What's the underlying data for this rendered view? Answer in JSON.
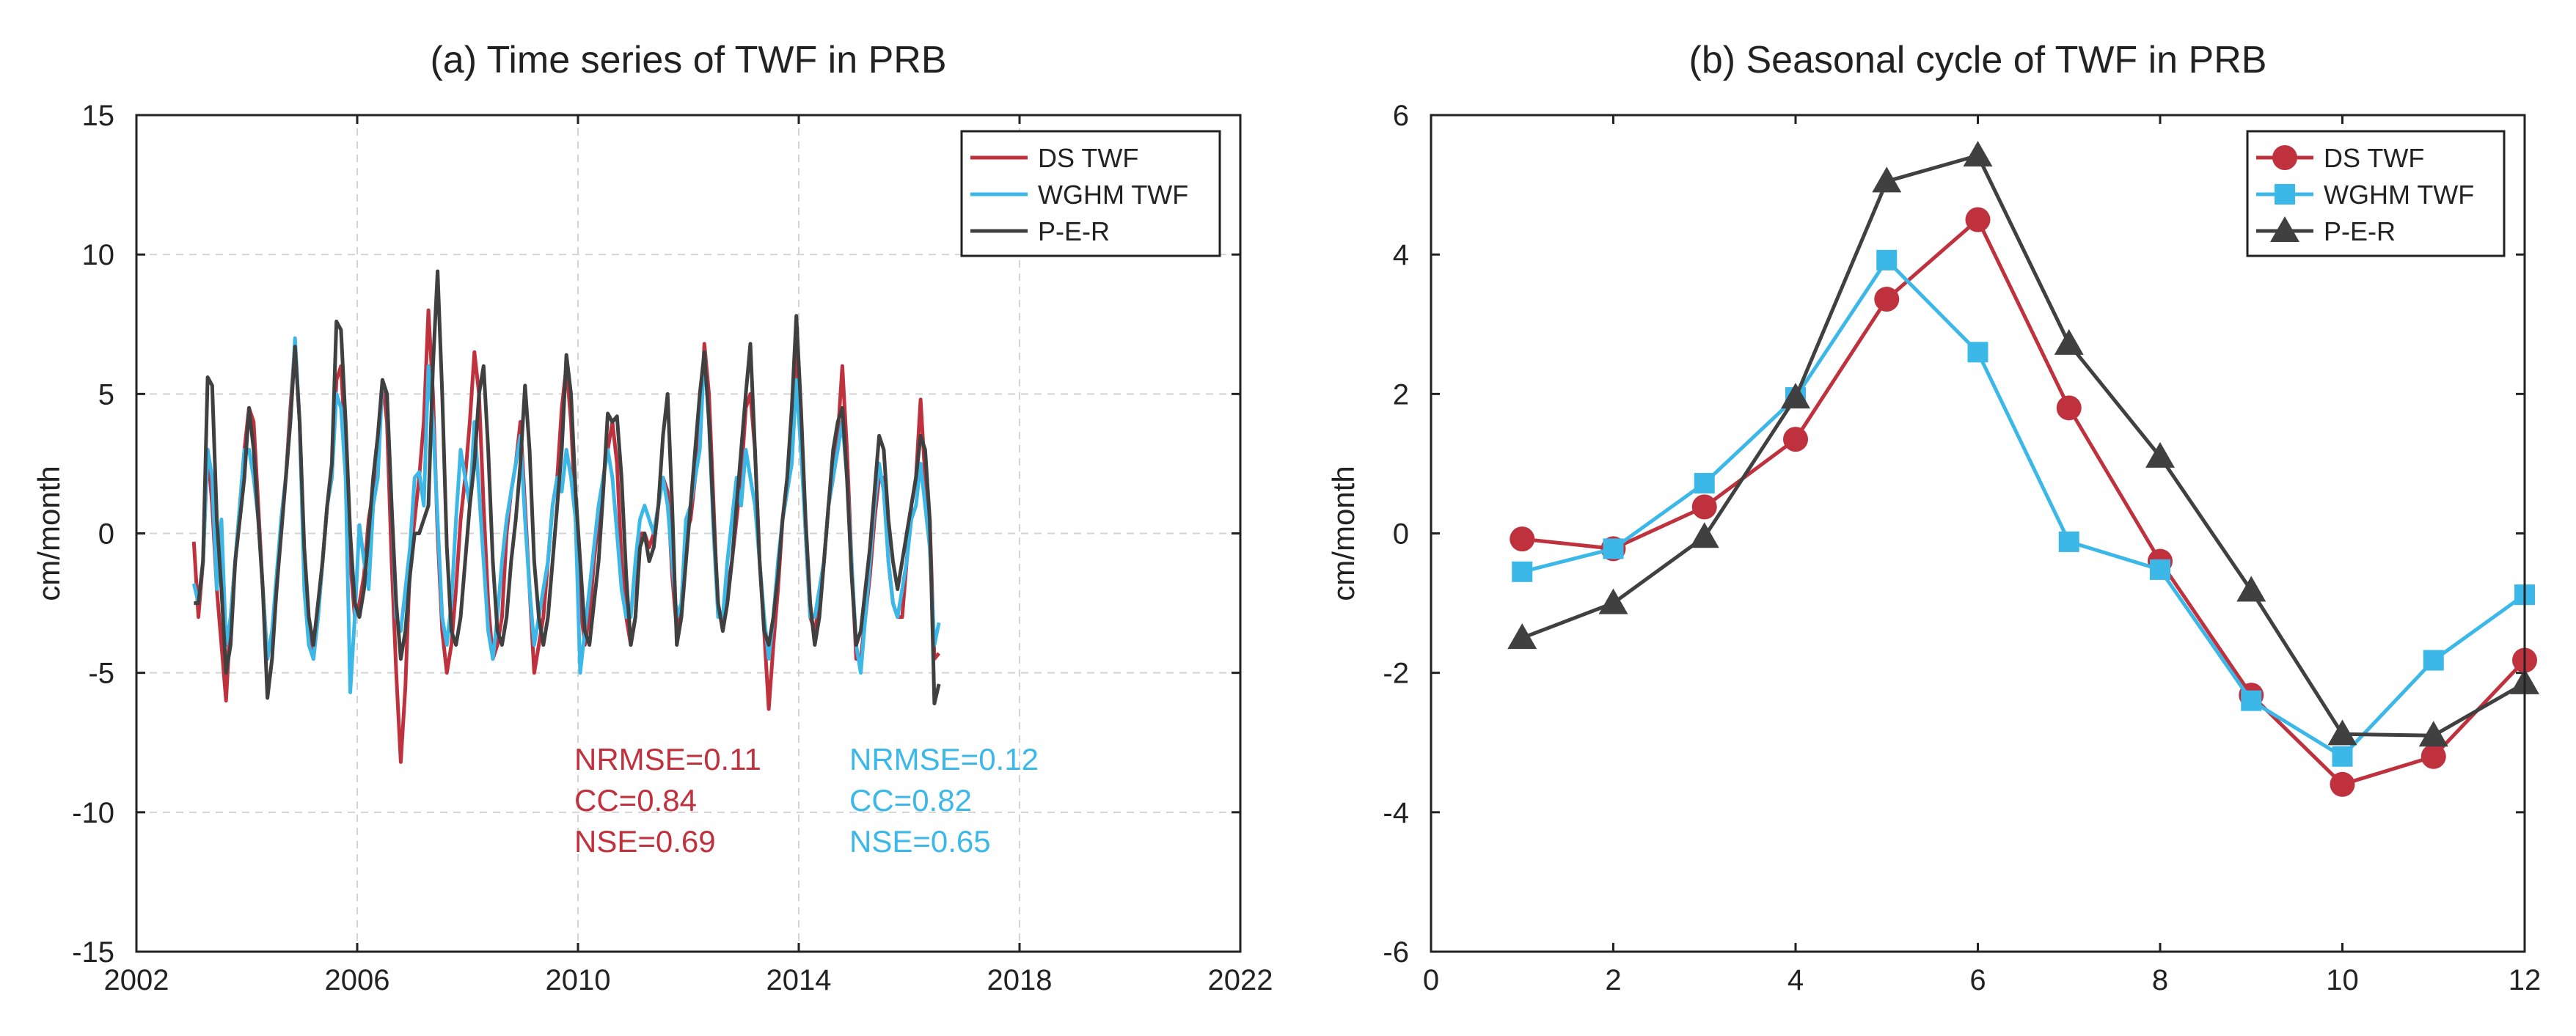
{
  "colors": {
    "ds": "#c0313e",
    "wghm": "#3bb8e8",
    "per": "#404040"
  },
  "chart_data": [
    {
      "type": "line",
      "title": "(a) Time series of TWF in PRB",
      "xlabel": "",
      "ylabel": "cm/month",
      "xlim": [
        2002,
        2022
      ],
      "ylim": [
        -15,
        15
      ],
      "xticks": [
        2002,
        2006,
        2010,
        2014,
        2018,
        2022
      ],
      "yticks": [
        -15,
        -10,
        -5,
        0,
        5,
        10,
        15
      ],
      "grid": true,
      "legend": "top-right",
      "x_start": 2003.04,
      "x_step_months": 1,
      "series": [
        {
          "name": "DS TWF",
          "color_key": "ds",
          "marker": "none",
          "values": [
            -0.3,
            -3.0,
            -1.0,
            3.0,
            1.0,
            -2.0,
            -4.0,
            -6.0,
            -3.0,
            -1.0,
            1.0,
            3.0,
            4.5,
            4.0,
            1.0,
            -2.0,
            -4.5,
            -3.5,
            -2.0,
            0.5,
            2.0,
            4.5,
            6.8,
            4.0,
            -1.0,
            -3.5,
            -4.5,
            -3.0,
            -1.0,
            1.0,
            2.0,
            5.5,
            6.0,
            3.0,
            -1.0,
            -3.0,
            -2.5,
            -1.5,
            0.5,
            1.5,
            3.0,
            5.5,
            4.0,
            -1.0,
            -5.0,
            -8.2,
            -5.5,
            -1.0,
            0.5,
            2.0,
            4.0,
            8.0,
            5.0,
            0.0,
            -3.5,
            -5.0,
            -4.0,
            -2.0,
            0.5,
            2.0,
            4.0,
            6.5,
            5.0,
            1.0,
            -2.5,
            -4.5,
            -4.0,
            -3.0,
            0.0,
            1.5,
            2.5,
            4.0,
            1.0,
            -2.0,
            -5.0,
            -4.0,
            -3.0,
            -1.0,
            1.0,
            2.0,
            4.5,
            6.0,
            4.0,
            0.5,
            -2.5,
            -4.0,
            -3.0,
            -1.0,
            0.5,
            2.0,
            3.0,
            4.0,
            2.5,
            -1.0,
            -3.0,
            -4.0,
            -3.0,
            0.0,
            0.0,
            -0.5,
            0.0,
            1.0,
            2.0,
            1.5,
            -1.5,
            -3.5,
            -2.5,
            0.0,
            0.5,
            2.0,
            3.5,
            6.8,
            5.0,
            1.0,
            -3.0,
            -3.0,
            -2.0,
            -1.0,
            0.5,
            2.0,
            4.5,
            5.0,
            3.0,
            -1.0,
            -3.5,
            -6.3,
            -4.0,
            -2.0,
            0.5,
            1.5,
            3.0,
            7.0,
            4.0,
            0.0,
            -3.0,
            -3.5,
            -2.5,
            -1.0,
            1.0,
            2.0,
            3.5,
            6.0,
            3.0,
            -1.0,
            -4.5,
            -4.5,
            -3.0,
            -1.5,
            0.5,
            2.0,
            2.0,
            -1.0,
            -2.5,
            -3.0,
            -3.0,
            -1.0,
            1.0,
            2.0,
            4.8,
            2.0,
            0.5,
            -4.5,
            -4.3
          ]
        },
        {
          "name": "WGHM TWF",
          "color_key": "wghm",
          "marker": "none",
          "values": [
            -1.8,
            -2.5,
            -1.0,
            3.0,
            2.0,
            -2.0,
            0.5,
            -4.0,
            -3.0,
            -1.0,
            1.0,
            3.0,
            3.0,
            2.0,
            0.5,
            -2.0,
            -4.5,
            -3.5,
            -1.5,
            0.5,
            2.0,
            4.0,
            7.0,
            4.0,
            -2.0,
            -4.0,
            -4.5,
            -3.0,
            -1.0,
            1.0,
            2.0,
            5.0,
            4.5,
            2.0,
            -5.7,
            -3.0,
            0.3,
            -1.0,
            -2.0,
            1.0,
            2.0,
            5.5,
            5.0,
            1.0,
            -3.0,
            -3.5,
            -2.0,
            -0.5,
            2.0,
            2.2,
            1.0,
            6.0,
            4.0,
            0.5,
            -3.0,
            -4.0,
            -2.5,
            0.5,
            3.0,
            2.0,
            1.0,
            4.0,
            1.5,
            -1.0,
            -3.5,
            -4.5,
            -3.0,
            -1.0,
            0.5,
            1.5,
            2.5,
            3.5,
            0.5,
            -2.0,
            -4.0,
            -3.0,
            -2.0,
            -1.0,
            1.0,
            2.0,
            1.5,
            3.0,
            2.0,
            0.5,
            -5.0,
            -3.5,
            -2.0,
            -0.5,
            1.0,
            2.0,
            3.0,
            2.0,
            0.0,
            -2.0,
            -3.0,
            -3.0,
            -1.0,
            0.5,
            1.0,
            0.5,
            0.0,
            1.0,
            2.0,
            1.0,
            -1.0,
            -3.0,
            -2.5,
            0.5,
            1.0,
            2.0,
            3.0,
            6.5,
            4.0,
            0.0,
            -3.0,
            -3.0,
            -1.0,
            0.5,
            2.0,
            1.0,
            3.0,
            2.0,
            1.0,
            -1.0,
            -3.0,
            -4.5,
            -3.0,
            -1.0,
            0.5,
            1.5,
            2.5,
            5.5,
            3.0,
            0.0,
            -3.0,
            -3.0,
            -2.0,
            -1.0,
            1.0,
            2.0,
            3.0,
            4.0,
            2.0,
            -1.0,
            -4.0,
            -5.0,
            -3.0,
            -1.0,
            1.0,
            2.5,
            1.5,
            -1.0,
            -2.5,
            -3.0,
            -2.0,
            -1.0,
            0.5,
            1.0,
            2.5,
            1.0,
            -0.5,
            -4.0,
            -3.2
          ]
        },
        {
          "name": "P-E-R",
          "color_key": "per",
          "marker": "none",
          "values": [
            -2.5,
            -2.5,
            -1.0,
            5.6,
            5.3,
            0.5,
            -2.0,
            -5.0,
            -4.0,
            -1.0,
            0.5,
            2.0,
            4.5,
            3.0,
            0.5,
            -2.0,
            -5.9,
            -4.5,
            -2.0,
            0.0,
            2.0,
            4.0,
            6.7,
            4.0,
            -0.5,
            -3.0,
            -4.0,
            -2.5,
            -1.0,
            1.0,
            2.5,
            7.6,
            7.3,
            4.0,
            0.0,
            -2.5,
            -3.0,
            -2.0,
            0.0,
            2.0,
            3.5,
            5.5,
            5.0,
            1.0,
            -2.5,
            -4.5,
            -3.5,
            -1.5,
            0.0,
            0.0,
            0.5,
            1.0,
            6.0,
            9.4,
            5.0,
            -0.5,
            -3.5,
            -4.0,
            -3.0,
            -1.0,
            1.0,
            2.5,
            5.0,
            6.0,
            3.0,
            -1.0,
            -3.5,
            -4.0,
            -3.0,
            -1.0,
            0.5,
            2.5,
            5.3,
            3.0,
            -1.0,
            -3.0,
            -4.0,
            -3.0,
            -1.0,
            1.0,
            3.0,
            6.4,
            5.0,
            1.5,
            -1.0,
            -3.5,
            -4.0,
            -2.5,
            -1.0,
            1.5,
            4.3,
            4.0,
            4.2,
            2.0,
            -1.5,
            -4.0,
            -3.0,
            -0.5,
            0.0,
            -1.0,
            -0.5,
            1.0,
            3.5,
            5.0,
            1.0,
            -4.0,
            -3.0,
            -1.0,
            1.0,
            3.0,
            5.0,
            6.5,
            4.0,
            0.5,
            -2.5,
            -3.5,
            -2.5,
            -1.0,
            1.0,
            3.0,
            5.0,
            6.8,
            3.0,
            -1.0,
            -3.5,
            -4.0,
            -3.0,
            -1.5,
            0.5,
            2.0,
            4.5,
            7.8,
            4.5,
            0.5,
            -2.5,
            -4.0,
            -3.0,
            -1.0,
            1.0,
            3.0,
            4.0,
            4.5,
            2.0,
            -1.5,
            -4.0,
            -3.5,
            -2.0,
            -0.5,
            1.5,
            3.5,
            3.0,
            0.5,
            -1.0,
            -2.0,
            -1.0,
            0.0,
            1.0,
            2.0,
            3.5,
            3.0,
            0.5,
            -6.1,
            -5.4
          ]
        }
      ],
      "annotations": [
        {
          "lines": [
            "NRMSE=0.11",
            "CC=0.84",
            "NSE=0.69"
          ],
          "color_key": "ds"
        },
        {
          "lines": [
            "NRMSE=0.12",
            "CC=0.82",
            "NSE=0.65"
          ],
          "color_key": "wghm"
        }
      ]
    },
    {
      "type": "line",
      "title": "(b) Seasonal cycle of TWF in PRB",
      "xlabel": "",
      "ylabel": "cm/month",
      "xlim": [
        0,
        12
      ],
      "ylim": [
        -6,
        6
      ],
      "xticks": [
        0,
        2,
        4,
        6,
        8,
        10,
        12
      ],
      "yticks": [
        -6,
        -4,
        -2,
        0,
        2,
        4,
        6
      ],
      "grid": false,
      "legend": "top-right",
      "x": [
        1,
        2,
        3,
        4,
        5,
        6,
        7,
        8,
        9,
        10,
        11,
        12
      ],
      "series": [
        {
          "name": "DS TWF",
          "color_key": "ds",
          "marker": "circle",
          "values": [
            -0.08,
            -0.22,
            0.38,
            1.35,
            3.36,
            4.5,
            1.8,
            -0.4,
            -2.32,
            -3.6,
            -3.2,
            -1.82
          ]
        },
        {
          "name": "WGHM TWF",
          "color_key": "wghm",
          "marker": "square",
          "values": [
            -0.55,
            -0.22,
            0.72,
            1.95,
            3.92,
            2.6,
            -0.12,
            -0.52,
            -2.4,
            -3.2,
            -1.82,
            -0.88
          ]
        },
        {
          "name": "P-E-R",
          "color_key": "per",
          "marker": "triangle",
          "values": [
            -1.5,
            -1.0,
            -0.05,
            1.95,
            5.05,
            5.42,
            2.72,
            1.1,
            -0.82,
            -2.88,
            -2.9,
            -2.15
          ]
        }
      ]
    }
  ]
}
